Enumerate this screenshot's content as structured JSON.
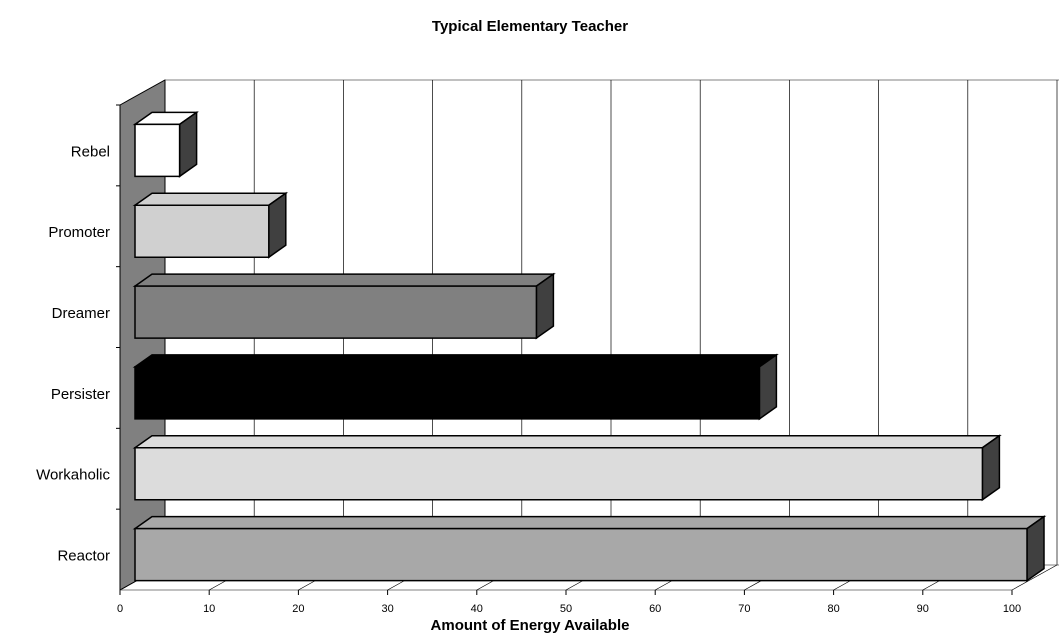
{
  "chart_data": {
    "type": "bar3d",
    "title": "Typical Elementary Teacher",
    "x_label": "Amount of Energy Available",
    "categories": [
      "Rebel",
      "Promoter",
      "Dreamer",
      "Persister",
      "Workaholic",
      "Reactor"
    ],
    "values": [
      5,
      15,
      45,
      70,
      95,
      100
    ],
    "colors": [
      "#ffffff",
      "#d0d0d0",
      "#808080",
      "#000000",
      "#dcdcdc",
      "#a8a8a8"
    ],
    "xlim": [
      0,
      100
    ],
    "xticks": [
      0,
      10,
      20,
      30,
      40,
      50,
      60,
      70,
      80,
      90,
      100
    ],
    "grid": true
  }
}
